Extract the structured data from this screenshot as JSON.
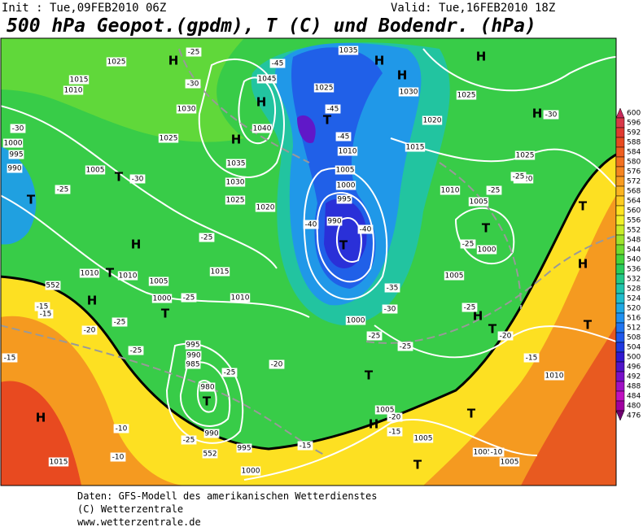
{
  "header": {
    "init": "Init : Tue,09FEB2010 06Z",
    "valid": "Valid: Tue,16FEB2010 18Z",
    "title": "500 hPa Geopot.(gpdm), T (C) und Bodendr. (hPa)"
  },
  "colorbar": {
    "levels": [
      600,
      596,
      592,
      588,
      584,
      580,
      576,
      572,
      568,
      564,
      560,
      556,
      552,
      548,
      544,
      540,
      536,
      532,
      528,
      524,
      520,
      516,
      512,
      508,
      504,
      500,
      496,
      492,
      488,
      484,
      480,
      476
    ],
    "colors": [
      "#c8285a",
      "#d83848",
      "#e03a30",
      "#e84a20",
      "#ee5e20",
      "#f27020",
      "#f58420",
      "#f89c20",
      "#fbb420",
      "#fdcc20",
      "#ffe420",
      "#f0f028",
      "#c8ec28",
      "#9ee42c",
      "#70dc30",
      "#44d43c",
      "#28cc5c",
      "#22c888",
      "#20c4ac",
      "#20bccc",
      "#20a8e4",
      "#2090f0",
      "#2074f0",
      "#2058ec",
      "#2038e0",
      "#3018d0",
      "#5014c8",
      "#7810c8",
      "#a010c4",
      "#c010c0",
      "#a000a0",
      "#700070"
    ]
  },
  "map": {
    "labels": [
      "1025",
      "1015",
      "1010",
      "1030",
      "1025",
      "1035",
      "1030",
      "1025",
      "1020",
      "1040",
      "1045",
      "1035",
      "1025",
      "1030",
      "1025",
      "1020",
      "1025",
      "1020",
      "1015",
      "1010",
      "1005",
      "1000",
      "995",
      "990",
      "1010",
      "1005",
      "1000",
      "1005",
      "1015",
      "1010",
      "1005",
      "1000",
      "1010",
      "1010",
      "995",
      "990",
      "985",
      "980",
      "990",
      "995",
      "1000",
      "1005",
      "1005",
      "1005",
      "1005",
      "1010",
      "1015",
      "1000",
      "1000",
      "995",
      "990",
      "1005",
      "H",
      "H",
      "H",
      "H",
      "H",
      "H",
      "H",
      "T",
      "T",
      "H",
      "T",
      "H",
      "T",
      "T",
      "H",
      "T",
      "T",
      "T",
      "H",
      "T",
      "H",
      "T",
      "T",
      "H",
      "T",
      "T",
      "T",
      "-25",
      "-30",
      "-45",
      "-45",
      "-45",
      "-30",
      "-30",
      "-30",
      "-25",
      "-25",
      "-40",
      "-40",
      "-35",
      "-30",
      "-25",
      "-25",
      "-25",
      "-25",
      "-25",
      "-25",
      "-20",
      "-20",
      "-15",
      "-15",
      "-15",
      "-10",
      "-10",
      "-25",
      "-20",
      "-15",
      "-15",
      "-10",
      "-15",
      "-20",
      "-25",
      "-25",
      "-25",
      "-25",
      "552",
      "552"
    ]
  },
  "footer": {
    "lines": [
      "Daten: GFS-Modell des amerikanischen Wetterdienstes",
      "(C) Wetterzentrale",
      "www.wetterzentrale.de"
    ]
  }
}
